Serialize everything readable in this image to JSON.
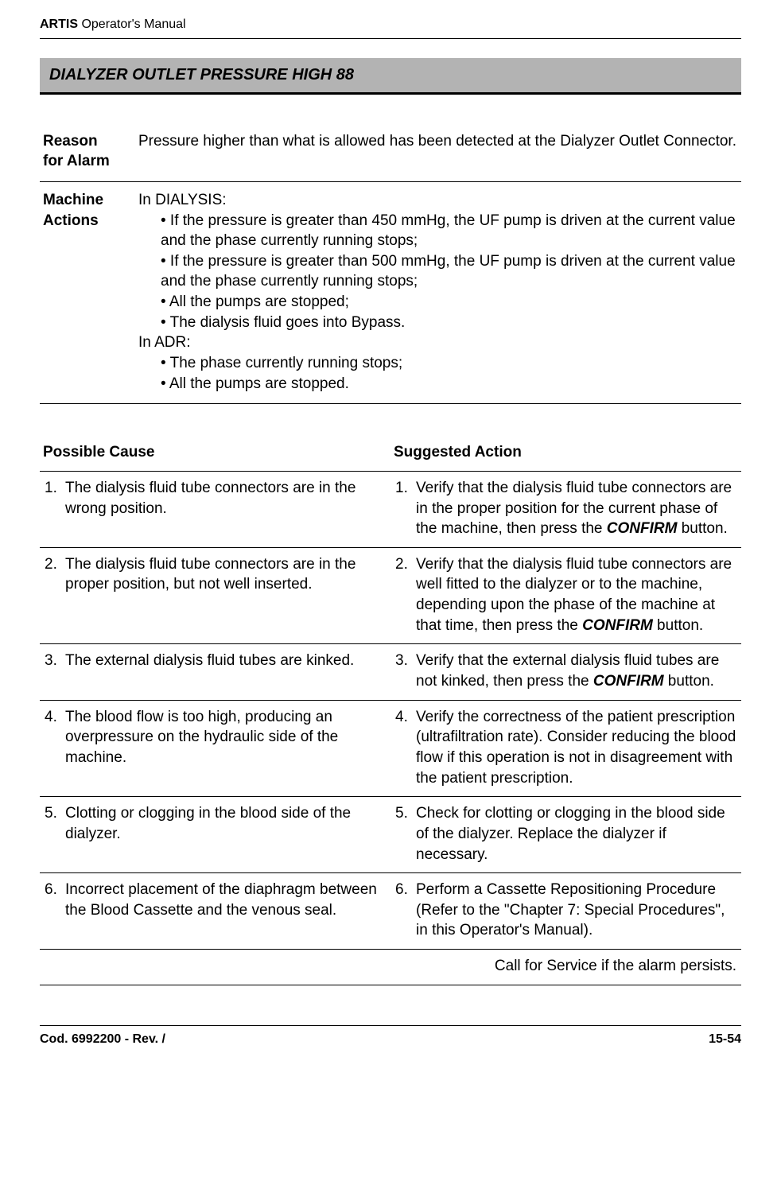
{
  "header": {
    "product_bold": "ARTIS",
    "product_rest": " Operator's Manual"
  },
  "title": "DIALYZER OUTLET PRESSURE HIGH 88",
  "reason": {
    "label_l1": "Reason",
    "label_l2": "for Alarm",
    "text": "Pressure higher than what is allowed has been detected at the Dialyzer Outlet Connector."
  },
  "actions": {
    "label_l1": "Machine",
    "label_l2": "Actions",
    "dialysis_label": "In DIALYSIS:",
    "dialysis_bullets": [
      "• If the pressure is greater than 450 mmHg, the UF pump is driven at the current value and the phase currently running stops;",
      "• If the pressure is greater than 500 mmHg, the UF pump is driven at the current value and the phase currently running stops;",
      "• All the pumps are stopped;",
      "• The dialysis fluid goes into Bypass."
    ],
    "adr_label": "In ADR:",
    "adr_bullets": [
      "• The phase currently running stops;",
      "• All the pumps are stopped."
    ]
  },
  "table": {
    "col1": "Possible Cause",
    "col2": "Suggested Action",
    "rows": [
      {
        "cn": "1.",
        "cause": "The dialysis fluid tube connectors are in the wrong position.",
        "an": "1.",
        "action_pre": "Verify that the dialysis fluid tube connectors are in the proper position for the current phase of the machine, then press the ",
        "action_bold": "CONFIRM",
        "action_post": " button."
      },
      {
        "cn": "2.",
        "cause": "The dialysis fluid tube connectors are in the proper position, but not well inserted.",
        "an": "2.",
        "action_pre": "Verify that the dialysis fluid tube connectors are well fitted to the dialyzer or to the machine, depending upon the phase of the machine at that time, then press the ",
        "action_bold": "CONFIRM",
        "action_post": " button."
      },
      {
        "cn": "3.",
        "cause": "The external dialysis fluid tubes are kinked.",
        "an": "3.",
        "action_pre": "Verify that the external dialysis fluid tubes are not kinked, then press the ",
        "action_bold": "CONFIRM",
        "action_post": " button."
      },
      {
        "cn": "4.",
        "cause": "The blood flow is too high, producing an overpressure on the hydraulic side of the machine.",
        "an": "4.",
        "action_pre": "Verify the correctness of the patient prescription (ultrafiltration rate). Consider reducing the blood flow if this operation is not in disagreement with the patient prescription.",
        "action_bold": "",
        "action_post": ""
      },
      {
        "cn": "5.",
        "cause": "Clotting or clogging in the blood side of the dialyzer.",
        "an": "5.",
        "action_pre": "Check for clotting or clogging in the blood side of the dialyzer. Replace the dialyzer if necessary.",
        "action_bold": "",
        "action_post": ""
      },
      {
        "cn": "6.",
        "cause": "Incorrect placement of the diaphragm between the Blood Cassette and the venous seal.",
        "an": "6.",
        "action_pre": "Perform a Cassette Repositioning Procedure (Refer to the \"Chapter 7: Special Procedures\", in this Operator's Manual).",
        "action_bold": "",
        "action_post": ""
      }
    ],
    "service": "Call for Service if the alarm persists."
  },
  "footer": {
    "left": "Cod. 6992200 - Rev. /",
    "right": "15-54"
  }
}
